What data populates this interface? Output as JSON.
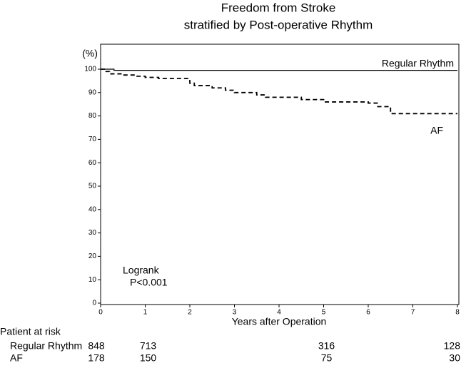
{
  "chart_data": {
    "type": "line",
    "step": true,
    "title": "Freedom from Stroke",
    "subtitle": "stratified by Post-operative Rhythm",
    "ylabel": "(%)",
    "xlabel": "Years after Operation",
    "xlim": [
      0,
      8
    ],
    "xticks": [
      0,
      1,
      2,
      3,
      4,
      5,
      6,
      7,
      8
    ],
    "ylim": [
      0,
      100
    ],
    "yticks": [
      0,
      10,
      20,
      30,
      40,
      50,
      60,
      70,
      80,
      90,
      100
    ],
    "grid": false,
    "series": [
      {
        "name": "Regular Rhythm",
        "color": "#000000",
        "dash": false,
        "x": [
          0,
          0.3,
          8
        ],
        "values": [
          100,
          99.5,
          99.5
        ]
      },
      {
        "name": "AF",
        "color": "#000000",
        "dash": true,
        "x": [
          0,
          0.1,
          0.2,
          0.5,
          0.8,
          1.0,
          1.3,
          2.0,
          2.1,
          2.5,
          2.8,
          3.0,
          3.5,
          3.7,
          4.5,
          5.0,
          6.0,
          6.2,
          6.5,
          8
        ],
        "values": [
          100,
          99,
          98,
          97.5,
          97,
          96.5,
          96,
          94,
          93,
          92,
          91,
          90,
          89,
          88,
          87,
          86,
          85.5,
          84,
          81,
          81
        ]
      }
    ],
    "annotations": [
      "Logrank",
      "P<0.001"
    ],
    "risk_table": {
      "title": "Patient at risk",
      "x": [
        0,
        1,
        5,
        8
      ],
      "rows": [
        {
          "name": "Regular Rhythm",
          "values": [
            848,
            713,
            316,
            128
          ]
        },
        {
          "name": "AF",
          "values": [
            178,
            150,
            75,
            30
          ]
        }
      ]
    }
  }
}
